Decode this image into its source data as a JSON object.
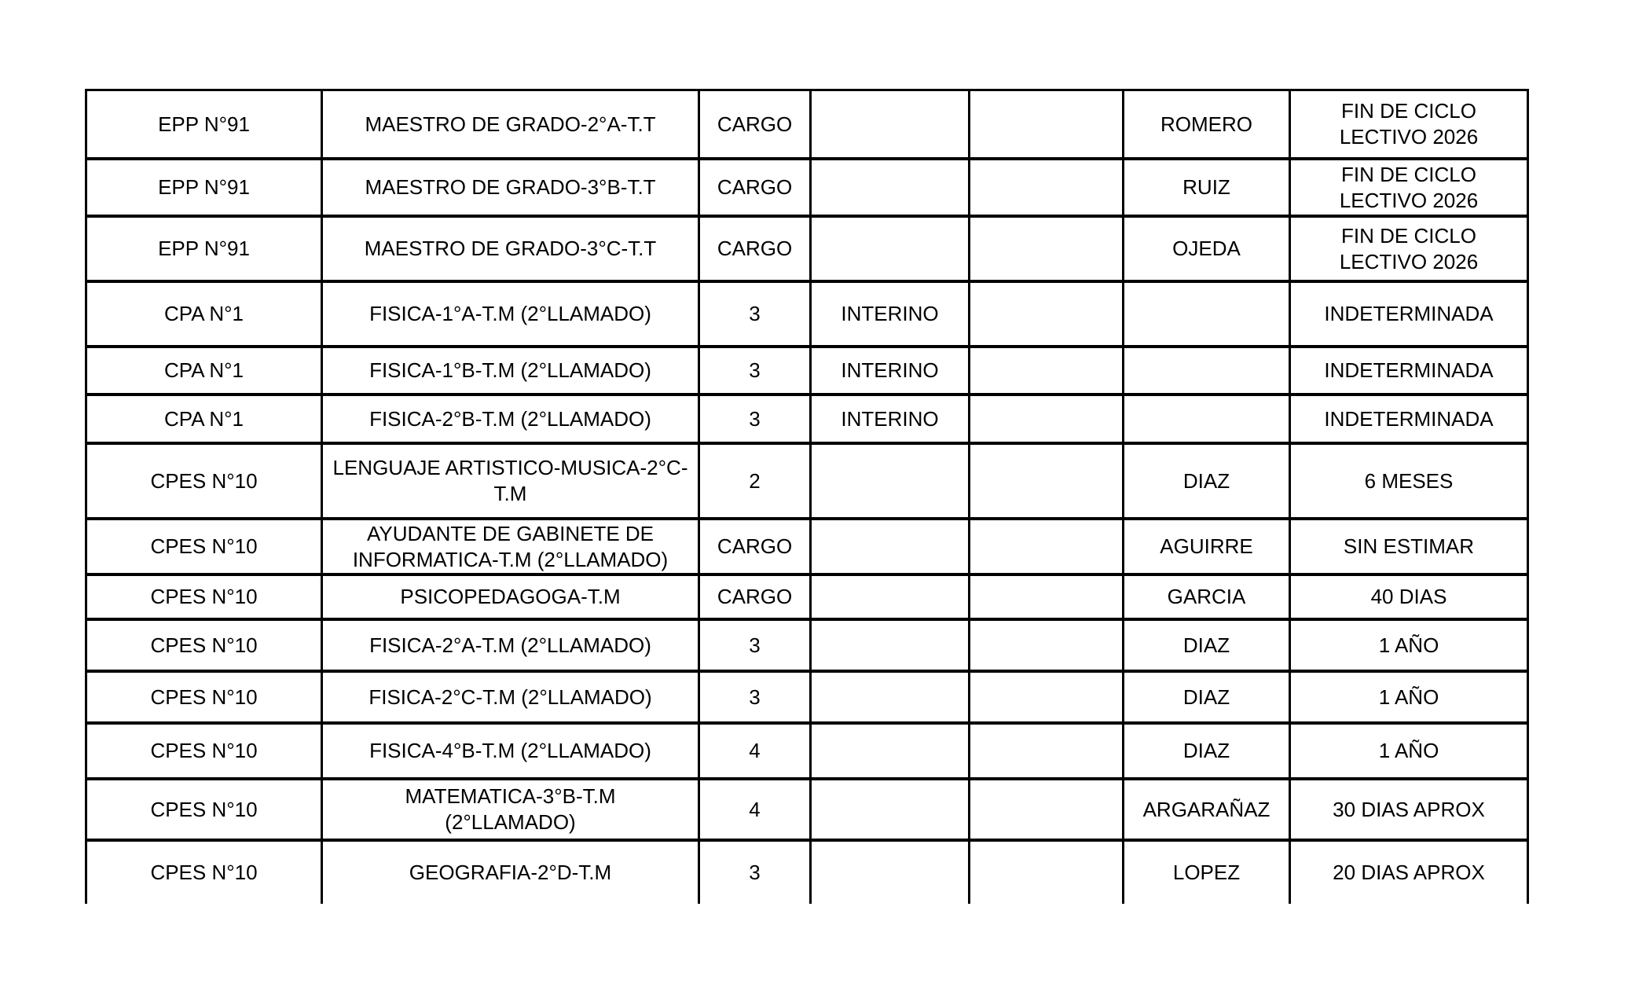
{
  "colors": {
    "background": "#ffffff",
    "border": "#000000",
    "text": "#000000"
  },
  "table": {
    "rows": [
      {
        "school": "EPP N°91",
        "position": "MAESTRO DE GRADO-2°A-T.T",
        "hours": "CARGO",
        "status": "",
        "extra": "",
        "surname": "ROMERO",
        "duration": "FIN DE CICLO\nLECTIVO 2026"
      },
      {
        "school": "EPP N°91",
        "position": "MAESTRO DE GRADO-3°B-T.T",
        "hours": "CARGO",
        "status": "",
        "extra": "",
        "surname": "RUIZ",
        "duration": "FIN DE CICLO\nLECTIVO 2026"
      },
      {
        "school": "EPP N°91",
        "position": "MAESTRO DE GRADO-3°C-T.T",
        "hours": "CARGO",
        "status": "",
        "extra": "",
        "surname": "OJEDA",
        "duration": "FIN DE CICLO\nLECTIVO 2026"
      },
      {
        "school": "CPA N°1",
        "position": "FISICA-1°A-T.M (2°LLAMADO)",
        "hours": "3",
        "status": "INTERINO",
        "extra": "",
        "surname": "",
        "duration": "INDETERMINADA"
      },
      {
        "school": "CPA N°1",
        "position": "FISICA-1°B-T.M (2°LLAMADO)",
        "hours": "3",
        "status": "INTERINO",
        "extra": "",
        "surname": "",
        "duration": "INDETERMINADA"
      },
      {
        "school": "CPA N°1",
        "position": "FISICA-2°B-T.M (2°LLAMADO)",
        "hours": "3",
        "status": "INTERINO",
        "extra": "",
        "surname": "",
        "duration": "INDETERMINADA"
      },
      {
        "school": "CPES N°10",
        "position": "LENGUAJE ARTISTICO-MUSICA-2°C-\nT.M",
        "hours": "2",
        "status": "",
        "extra": "",
        "surname": "DIAZ",
        "duration": "6 MESES"
      },
      {
        "school": "CPES N°10",
        "position": "AYUDANTE DE GABINETE DE\nINFORMATICA-T.M (2°LLAMADO)",
        "hours": "CARGO",
        "status": "",
        "extra": "",
        "surname": "AGUIRRE",
        "duration": "SIN ESTIMAR"
      },
      {
        "school": "CPES N°10",
        "position": "PSICOPEDAGOGA-T.M",
        "hours": "CARGO",
        "status": "",
        "extra": "",
        "surname": "GARCIA",
        "duration": "40 DIAS"
      },
      {
        "school": "CPES N°10",
        "position": "FISICA-2°A-T.M (2°LLAMADO)",
        "hours": "3",
        "status": "",
        "extra": "",
        "surname": "DIAZ",
        "duration": "1 AÑO"
      },
      {
        "school": "CPES N°10",
        "position": "FISICA-2°C-T.M (2°LLAMADO)",
        "hours": "3",
        "status": "",
        "extra": "",
        "surname": "DIAZ",
        "duration": "1 AÑO"
      },
      {
        "school": "CPES N°10",
        "position": "FISICA-4°B-T.M (2°LLAMADO)",
        "hours": "4",
        "status": "",
        "extra": "",
        "surname": "DIAZ",
        "duration": "1 AÑO"
      },
      {
        "school": "CPES N°10",
        "position": "MATEMATICA-3°B-T.M\n(2°LLAMADO)",
        "hours": "4",
        "status": "",
        "extra": "",
        "surname": "ARGARAÑAZ",
        "duration": "30 DIAS APROX"
      },
      {
        "school": "CPES N°10",
        "position": "GEOGRAFIA-2°D-T.M",
        "hours": "3",
        "status": "",
        "extra": "",
        "surname": "LOPEZ",
        "duration": "20 DIAS APROX"
      }
    ]
  }
}
